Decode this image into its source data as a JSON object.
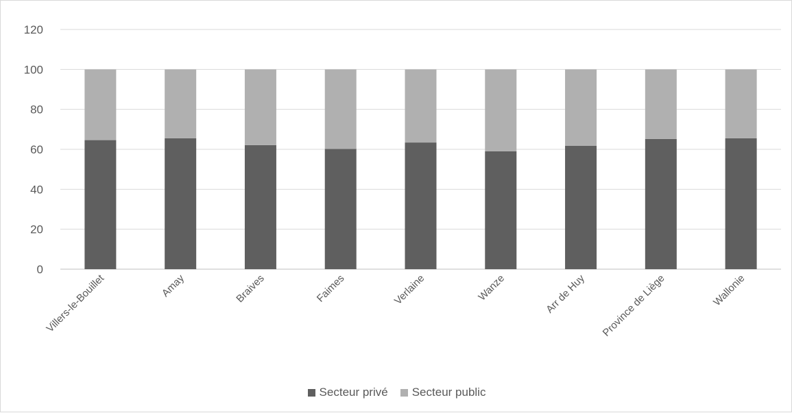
{
  "chart_data": {
    "type": "bar",
    "stacked": true,
    "categories": [
      "Villers-le-Bouillet",
      "Amay",
      "Braives",
      "Faimes",
      "Verlaine",
      "Wanze",
      "Arr de Huy",
      "Province de Liège",
      "Wallonie"
    ],
    "series": [
      {
        "name": "Secteur privé",
        "color": "#5f5f5f",
        "values": [
          64.6,
          65.5,
          62.1,
          60.2,
          63.4,
          59.0,
          61.8,
          65.2,
          65.5
        ]
      },
      {
        "name": "Secteur public",
        "color": "#b0b0b0",
        "values": [
          35.4,
          34.5,
          37.9,
          39.8,
          36.6,
          41.0,
          38.2,
          34.8,
          34.5
        ]
      }
    ],
    "title": "",
    "xlabel": "",
    "ylabel": "",
    "ylim": [
      0,
      120
    ],
    "yticks": [
      0,
      20,
      40,
      60,
      80,
      100,
      120
    ],
    "grid": true,
    "legend_position": "bottom-center"
  }
}
